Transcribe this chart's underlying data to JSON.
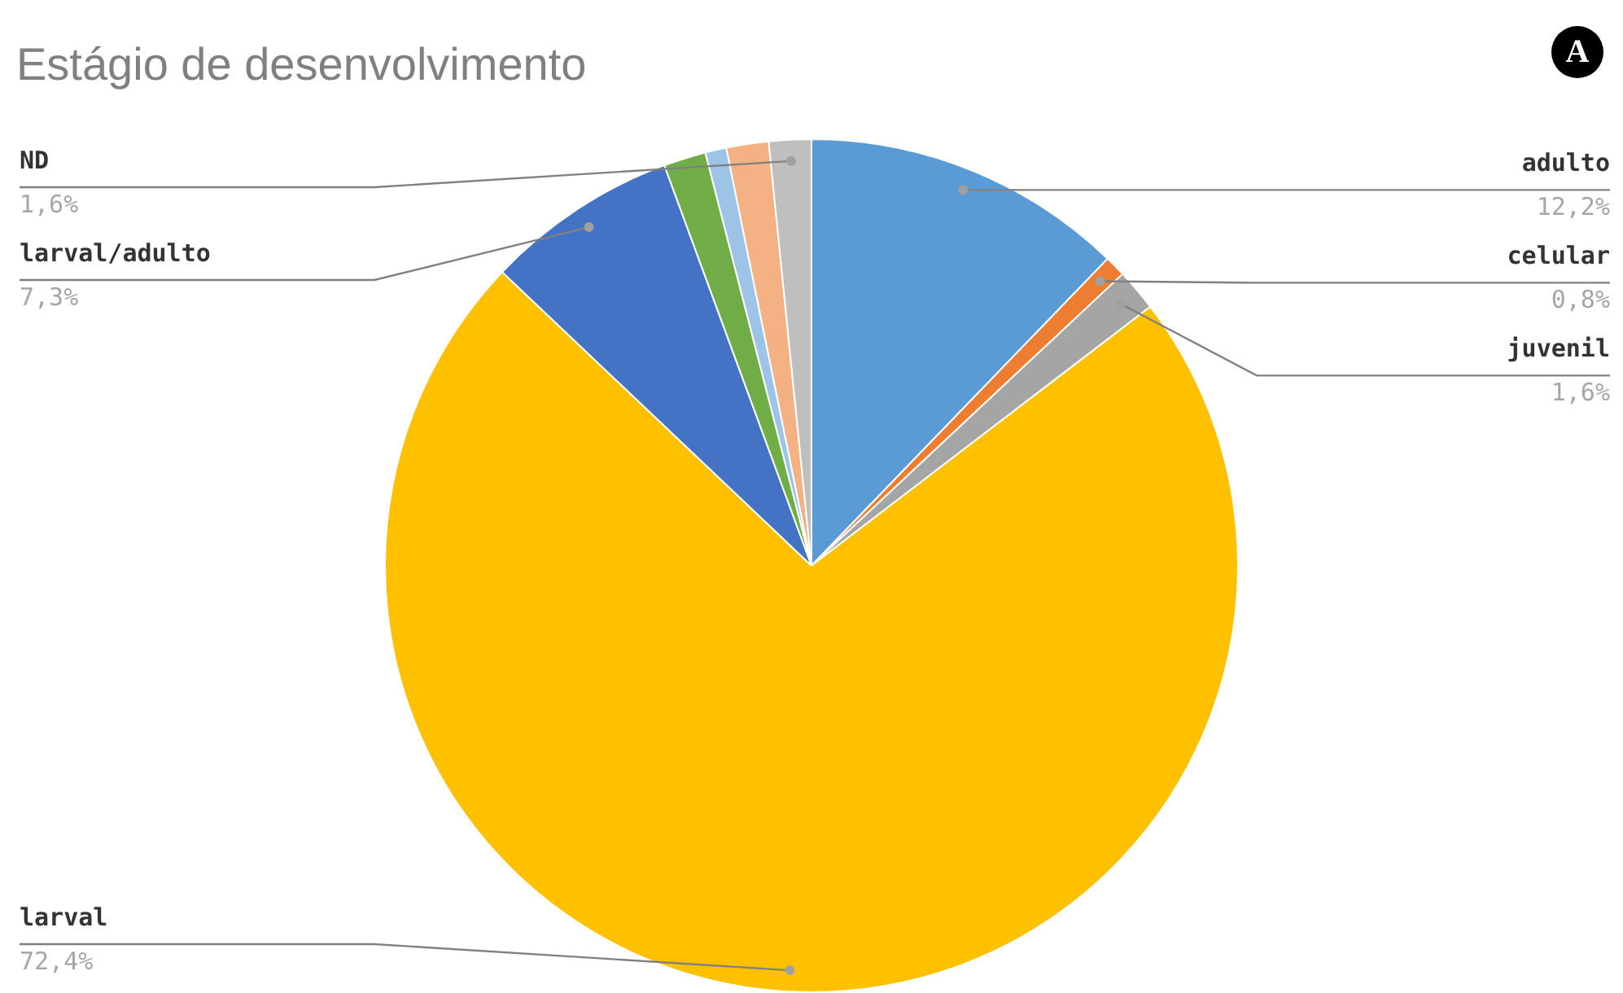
{
  "chart_data": {
    "type": "pie",
    "title": "Estágio de desenvolvimento",
    "annotations": [
      "A"
    ],
    "categories": [
      "adulto",
      "celular",
      "juvenil",
      "larval",
      "larval/adulto",
      null,
      null,
      null,
      "ND"
    ],
    "values": [
      12.2,
      0.8,
      1.6,
      72.4,
      7.3,
      1.6,
      0.8,
      1.6,
      1.6
    ],
    "value_labels": [
      "12,2%",
      "0,8%",
      "1,6%",
      "72,4%",
      "7,3%",
      null,
      null,
      null,
      "1,6%"
    ],
    "colors": [
      "#5b9bd5",
      "#ed7d31",
      "#a5a5a5",
      "#ffc000",
      "#4472c4",
      "#70ad47",
      "#9dc3e6",
      "#f4b183",
      "#bfbfbf"
    ]
  }
}
